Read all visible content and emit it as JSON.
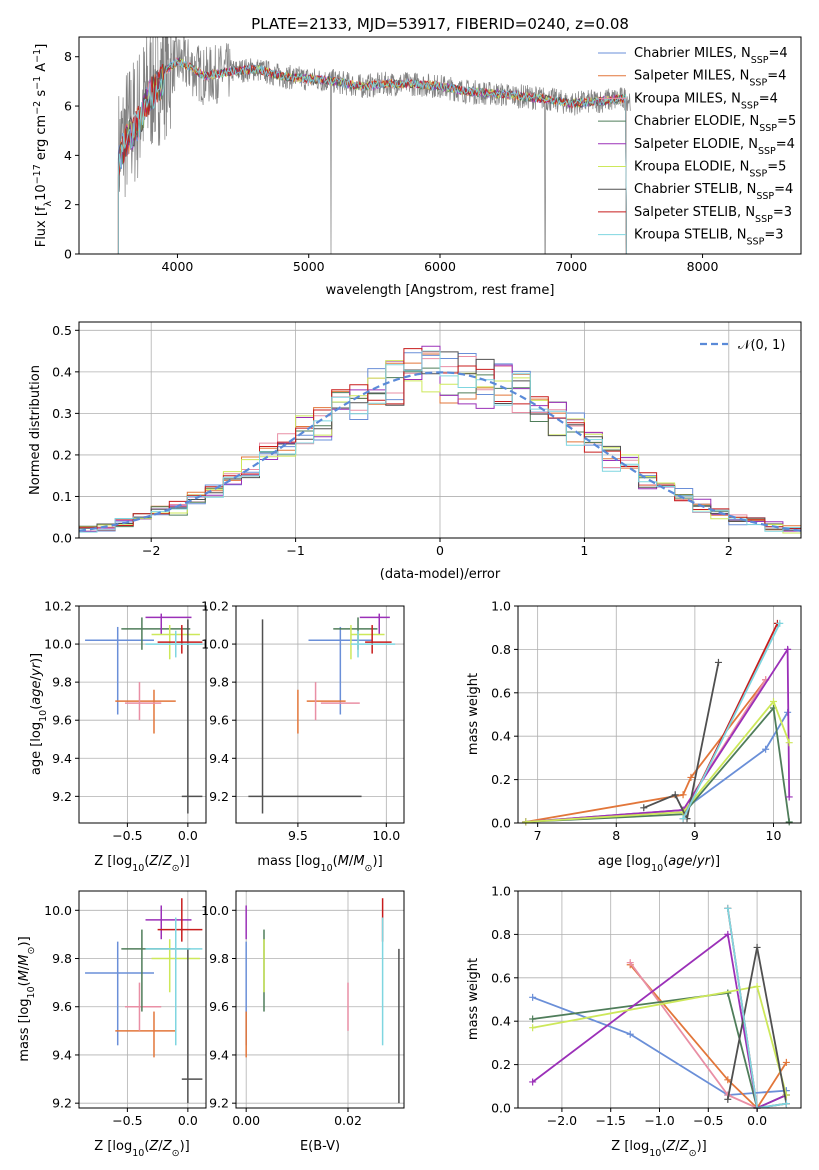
{
  "figure": {
    "title": "PLATE=2133, MJD=53917, FIBERID=0240, z=0.08"
  },
  "series": [
    {
      "name": "Chabrier MILES, N$_{SSP}$=4",
      "label_main": "Chabrier MILES, N",
      "label_sub": "SSP",
      "label_tail": "=4",
      "color": "#6a8fd8"
    },
    {
      "name": "Salpeter MILES, N$_{SSP}$=4",
      "label_main": "Salpeter MILES, N",
      "label_sub": "SSP",
      "label_tail": "=4",
      "color": "#e2763a"
    },
    {
      "name": "Kroupa MILES, N$_{SSP}$=4",
      "label_main": "Kroupa MILES, N",
      "label_sub": "SSP",
      "label_tail": "=4",
      "color": "#e98fa5"
    },
    {
      "name": "Chabrier ELODIE, N$_{SSP}$=5",
      "label_main": "Chabrier ELODIE, N",
      "label_sub": "SSP",
      "label_tail": "=5",
      "color": "#4f7d5a"
    },
    {
      "name": "Salpeter ELODIE, N$_{SSP}$=4",
      "label_main": "Salpeter ELODIE, N",
      "label_sub": "SSP",
      "label_tail": "=4",
      "color": "#9b30b8"
    },
    {
      "name": "Kroupa ELODIE, N$_{SSP}$=5",
      "label_main": "Kroupa ELODIE, N",
      "label_sub": "SSP",
      "label_tail": "=5",
      "color": "#cde85a"
    },
    {
      "name": "Chabrier STELIB, N$_{SSP}$=4",
      "label_main": "Chabrier STELIB, N",
      "label_sub": "SSP",
      "label_tail": "=4",
      "color": "#505050"
    },
    {
      "name": "Salpeter STELIB, N$_{SSP}$=3",
      "label_main": "Salpeter STELIB, N",
      "label_sub": "SSP",
      "label_tail": "=3",
      "color": "#c81c1c"
    },
    {
      "name": "Kroupa STELIB, N$_{SSP}$=3",
      "label_main": "Kroupa STELIB, N",
      "label_sub": "SSP",
      "label_tail": "=3",
      "color": "#7fd6e0"
    }
  ],
  "chart_data": [
    {
      "type": "line",
      "panel": "spectrum",
      "xlabel": "wavelength [Angstrom, rest frame]",
      "ylabel": "Flux [f$_\\lambda$10$^{-17}$ erg cm$^{-2}$ s$^{-1}$ A$^{-1}$]",
      "xlim": [
        3250,
        8750
      ],
      "ylim": [
        0,
        8.8
      ],
      "xticks": [
        4000,
        5000,
        6000,
        7000,
        8000
      ],
      "yticks": [
        0,
        2,
        4,
        6,
        8
      ],
      "legend": "right",
      "data_color": "#808080",
      "continuum": {
        "x": [
          3550,
          3600,
          3700,
          3800,
          3900,
          4000,
          4100,
          4200,
          4400,
          4600,
          4800,
          5000,
          5200,
          5400,
          5600,
          5800,
          6000,
          6200,
          6400,
          6600,
          6800,
          7000,
          7200,
          7400
        ],
        "y": [
          4.0,
          4.8,
          5.6,
          6.8,
          7.4,
          7.8,
          7.6,
          7.2,
          7.4,
          7.5,
          7.2,
          7.1,
          7.0,
          6.8,
          6.9,
          6.9,
          6.8,
          6.6,
          6.5,
          6.4,
          6.3,
          6.1,
          6.2,
          6.3
        ]
      }
    },
    {
      "type": "bar",
      "panel": "residuals",
      "xlabel": "(data-model)/error",
      "ylabel": "Normed distribution",
      "xlim": [
        -2.5,
        2.5
      ],
      "ylim": [
        0,
        0.52
      ],
      "xticks": [
        -2,
        -1,
        0,
        1,
        2
      ],
      "yticks": [
        0.0,
        0.1,
        0.2,
        0.3,
        0.4,
        0.5
      ],
      "grid": true,
      "legend": "top-right",
      "reference_label": "$\\mathcal{N}(0,1)$",
      "reference_label_text": "𝒩(0, 1)",
      "reference_color": "#5a8ad8"
    },
    {
      "type": "scatter",
      "panel": "age-vs-Z",
      "xlabel": "Z [log$_{10}$(Z/Z$_\\odot$)]",
      "ylabel": "age  [log$_{10}$(age/yr)]",
      "xlim": [
        -0.9,
        0.15
      ],
      "ylim": [
        9.06,
        10.2
      ],
      "xticks": [
        -0.5,
        0.0
      ],
      "yticks": [
        9.2,
        9.4,
        9.6,
        9.8,
        10.0,
        10.2
      ],
      "grid": true
    },
    {
      "type": "scatter",
      "panel": "age-vs-mass",
      "xlabel": "mass [log$_{10}$(M/M$_\\odot$)]",
      "xlim": [
        9.15,
        10.1
      ],
      "ylim": [
        9.06,
        10.2
      ],
      "xticks": [
        9.5,
        10.0
      ],
      "yticks": [
        9.2,
        9.4,
        9.6,
        9.8,
        10.0,
        10.2
      ],
      "grid": true
    },
    {
      "type": "line",
      "panel": "mass-weight-vs-age",
      "xlabel": "age  [log$_{10}$(age/yr)]",
      "ylabel": "mass weight",
      "xlim": [
        6.75,
        10.35
      ],
      "ylim": [
        0,
        1.0
      ],
      "xticks": [
        7,
        8,
        9,
        10
      ],
      "yticks": [
        0.0,
        0.2,
        0.4,
        0.6,
        0.8,
        1.0
      ],
      "grid": true
    },
    {
      "type": "scatter",
      "panel": "mass-vs-Z",
      "xlabel": "Z [log$_{10}$(Z/Z$_\\odot$)]",
      "ylabel": "mass [log$_{10}$(M/M$_\\odot$)]",
      "xlim": [
        -0.9,
        0.15
      ],
      "ylim": [
        9.18,
        10.08
      ],
      "xticks": [
        -0.5,
        0.0
      ],
      "yticks": [
        9.2,
        9.4,
        9.6,
        9.8,
        10.0
      ],
      "grid": true
    },
    {
      "type": "scatter",
      "panel": "mass-vs-ebv",
      "xlabel": "E(B-V)",
      "xlim": [
        -0.002,
        0.031
      ],
      "ylim": [
        9.18,
        10.08
      ],
      "xticks": [
        0.0,
        0.02
      ],
      "yticks": [
        9.2,
        9.4,
        9.6,
        9.8,
        10.0
      ],
      "grid": true
    },
    {
      "type": "line",
      "panel": "mass-weight-vs-Z",
      "xlabel": "Z [log$_{10}$(Z/Z$_\\odot$)]",
      "ylabel": "mass weight",
      "xlim": [
        -2.45,
        0.45
      ],
      "ylim": [
        0,
        1.0
      ],
      "xticks": [
        -2.0,
        -1.5,
        -1.0,
        -0.5,
        0.0
      ],
      "yticks": [
        0.0,
        0.2,
        0.4,
        0.6,
        0.8,
        1.0
      ],
      "grid": true
    }
  ],
  "estimates": [
    {
      "Z": -0.58,
      "Zlo": -0.85,
      "Zhi": -0.28,
      "age": 10.02,
      "alo": 9.63,
      "ahi": 10.09,
      "mass": 9.74,
      "mlo": 9.44,
      "mhi": 9.87,
      "mMin": 9.56,
      "mMax": 9.92,
      "ebv": 0.0,
      "mw_age": [
        [
          6.85,
          0.005
        ],
        [
          8.85,
          0.06
        ],
        [
          9.9,
          0.34
        ],
        [
          10.18,
          0.51
        ]
      ],
      "mw_Z": [
        [
          -2.3,
          0.51
        ],
        [
          -1.3,
          0.34
        ],
        [
          -0.3,
          0.06
        ],
        [
          0.3,
          0.08
        ]
      ]
    },
    {
      "Z": -0.28,
      "Zlo": -0.6,
      "Zhi": -0.1,
      "age": 9.7,
      "alo": 9.53,
      "ahi": 9.76,
      "mass": 9.5,
      "mlo": 9.39,
      "mhi": 9.58,
      "mMin": 9.55,
      "mMax": 9.77,
      "ebv": 0.0,
      "mw_age": [
        [
          6.85,
          0.005
        ],
        [
          8.85,
          0.13
        ],
        [
          8.95,
          0.21
        ],
        [
          9.9,
          0.66
        ]
      ],
      "mw_Z": [
        [
          -1.3,
          0.66
        ],
        [
          -0.3,
          0.13
        ],
        [
          0.0,
          0.0
        ],
        [
          0.3,
          0.21
        ]
      ]
    },
    {
      "Z": -0.4,
      "Zlo": -0.52,
      "Zhi": -0.22,
      "age": 9.69,
      "alo": 9.6,
      "ahi": 9.8,
      "mass": 9.6,
      "mlo": 9.5,
      "mhi": 9.7,
      "mMin": 9.63,
      "mMax": 9.85,
      "ebv": 0.02,
      "mw_age": [
        [
          6.85,
          0.005
        ],
        [
          8.85,
          0.06
        ],
        [
          9.9,
          0.66
        ]
      ],
      "mw_Z": [
        [
          -1.3,
          0.67
        ],
        [
          -0.3,
          0.06
        ],
        [
          0.0,
          0.0
        ]
      ]
    },
    {
      "Z": -0.38,
      "Zlo": -0.55,
      "Zhi": 0.02,
      "age": 10.08,
      "alo": 9.97,
      "ahi": 10.14,
      "mass": 9.84,
      "mlo": 9.58,
      "mhi": 9.92,
      "mMin": 9.7,
      "mMax": 9.95,
      "ebv": 0.0035,
      "mw_age": [
        [
          6.85,
          0.005
        ],
        [
          8.85,
          0.04
        ],
        [
          10.0,
          0.53
        ],
        [
          10.2,
          0.005
        ]
      ],
      "mw_Z": [
        [
          -2.3,
          0.41
        ],
        [
          -0.3,
          0.53
        ],
        [
          0.0,
          0.0
        ],
        [
          0.3,
          0.06
        ]
      ]
    },
    {
      "Z": -0.22,
      "Zlo": -0.35,
      "Zhi": 0.03,
      "age": 10.14,
      "alo": 10.05,
      "ahi": 10.16,
      "mass": 9.96,
      "mlo": 9.88,
      "mhi": 10.02,
      "mMin": 9.85,
      "mMax": 10.02,
      "ebv": 0.0,
      "mw_age": [
        [
          6.85,
          0.005
        ],
        [
          8.85,
          0.06
        ],
        [
          10.18,
          0.8
        ],
        [
          10.2,
          0.12
        ]
      ],
      "mw_Z": [
        [
          -2.3,
          0.12
        ],
        [
          -0.3,
          0.8
        ],
        [
          0.0,
          0.0
        ],
        [
          0.3,
          0.06
        ]
      ]
    },
    {
      "Z": -0.15,
      "Zlo": -0.3,
      "Zhi": 0.1,
      "age": 10.05,
      "alo": 9.92,
      "ahi": 10.1,
      "mass": 9.8,
      "mlo": 9.66,
      "mhi": 9.88,
      "mMin": 9.8,
      "mMax": 9.99,
      "ebv": 0.0035,
      "mw_age": [
        [
          6.85,
          0.005
        ],
        [
          8.85,
          0.05
        ],
        [
          10.0,
          0.56
        ],
        [
          10.2,
          0.37
        ]
      ],
      "mw_Z": [
        [
          -2.3,
          0.37
        ],
        [
          0.0,
          0.56
        ],
        [
          0.3,
          0.06
        ]
      ]
    },
    {
      "Z": 0.0,
      "Zlo": -0.05,
      "Zhi": 0.12,
      "age": 9.2,
      "alo": 9.11,
      "ahi": 10.13,
      "mass": 9.3,
      "mlo": 9.2,
      "mhi": 9.84,
      "mMin": 9.22,
      "mMax": 9.86,
      "ebv": 0.03,
      "mw_age": [
        [
          8.35,
          0.07
        ],
        [
          8.75,
          0.13
        ],
        [
          8.9,
          0.02
        ],
        [
          9.3,
          0.74
        ]
      ],
      "mw_Z": [
        [
          -0.3,
          0.04
        ],
        [
          0.0,
          0.74
        ],
        [
          0.3,
          0.02
        ]
      ]
    },
    {
      "Z": -0.05,
      "Zlo": -0.25,
      "Zhi": 0.12,
      "age": 10.01,
      "alo": 9.95,
      "ahi": 10.1,
      "mass": 9.92,
      "mlo": 9.87,
      "mhi": 10.05,
      "mMin": 9.88,
      "mMax": 10.03,
      "ebv": 0.0268,
      "mw_age": [
        [
          8.85,
          0.02
        ],
        [
          10.05,
          0.92
        ]
      ],
      "mw_Z": [
        [
          -0.3,
          0.92
        ],
        [
          0.0,
          0.0
        ],
        [
          0.3,
          0.02
        ]
      ]
    },
    {
      "Z": -0.1,
      "Zlo": -0.35,
      "Zhi": 0.12,
      "age": 10.0,
      "alo": 9.93,
      "ahi": 10.07,
      "mass": 9.84,
      "mlo": 9.44,
      "mhi": 9.97,
      "mMin": 9.8,
      "mMax": 10.05,
      "ebv": 0.0268,
      "mw_age": [
        [
          8.85,
          0.02
        ],
        [
          10.08,
          0.92
        ]
      ],
      "mw_Z": [
        [
          -0.3,
          0.92
        ],
        [
          0.0,
          0.0
        ],
        [
          0.3,
          0.02
        ]
      ]
    }
  ]
}
